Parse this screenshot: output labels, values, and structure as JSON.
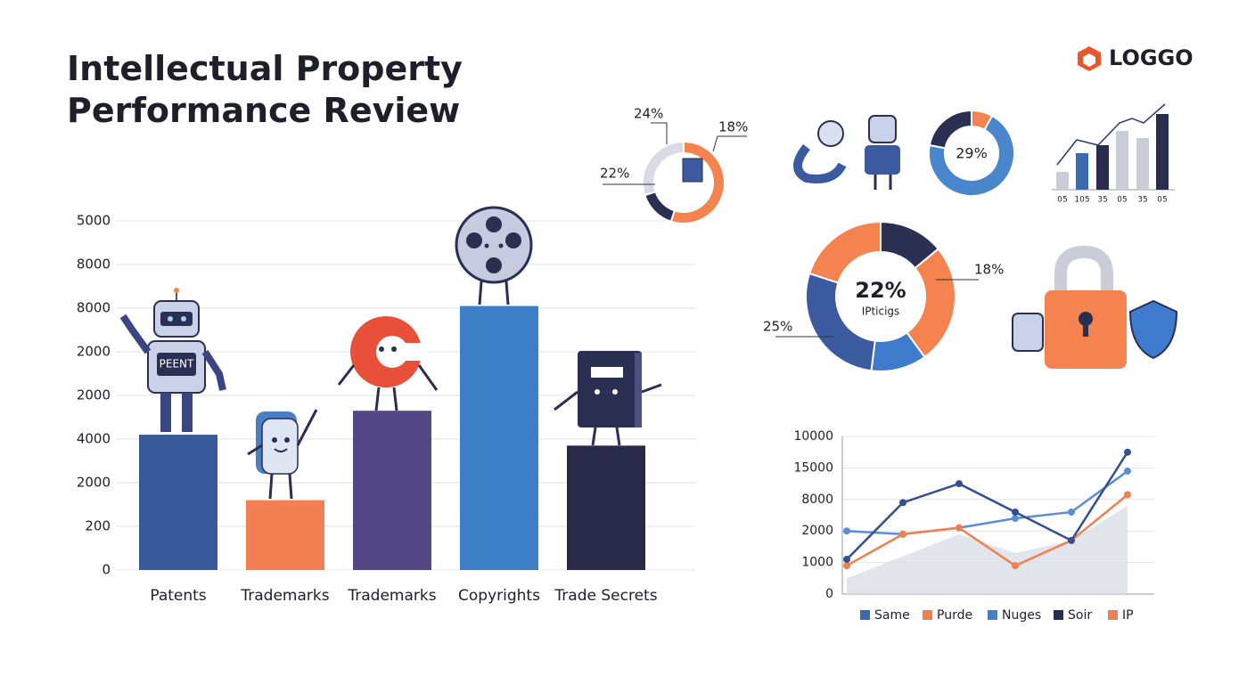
{
  "header": {
    "title_lines": [
      "Intellectual Property",
      "Performance Review"
    ],
    "logo": "LOGGO"
  },
  "chart_data": [
    {
      "type": "bar",
      "categories": [
        "Patents",
        "Trademarks",
        "Trademarks",
        "Copyrights",
        "Trade Secrets"
      ],
      "values": [
        3100,
        1600,
        3650,
        6050,
        2850
      ],
      "colors": [
        "#385a98",
        "#f47f52",
        "#554786",
        "#3d7fc6",
        "#292a48"
      ],
      "ylim": [
        0,
        8000
      ],
      "yticks": [
        0,
        {
          "value": 1000,
          "label": "200"
        },
        2000,
        {
          "value": 3000,
          "label": "4000"
        },
        {
          "value": 4000,
          "label": "2000"
        },
        {
          "value": 5000,
          "label": "2000"
        },
        {
          "value": 6000,
          "label": "8000"
        },
        {
          "value": 7000,
          "label": "8000"
        },
        {
          "value": 8000,
          "label": "5000"
        }
      ],
      "grid": true
    },
    {
      "type": "line",
      "categories": [
        null,
        null,
        null,
        null,
        null,
        null
      ],
      "area": {
        "color": "#dcdfe8",
        "values": [
          500,
          1200,
          1900,
          1300,
          1700,
          2800
        ]
      },
      "series": [
        {
          "color": "#5a8ed0",
          "values": [
            2000,
            1900,
            2100,
            2400,
            2600,
            3900
          ]
        },
        {
          "color": "#f0804f",
          "values": [
            900,
            1900,
            2100,
            900,
            1700,
            3150
          ]
        },
        {
          "color": "#34508e",
          "values": [
            1100,
            2900,
            3500,
            2600,
            1700,
            4500
          ]
        }
      ],
      "legend": [
        {
          "name": "Same",
          "color": "#3a6bb0"
        },
        {
          "name": "Purde",
          "color": "#f0804f"
        },
        {
          "name": "Nuges",
          "color": "#4a7fc4"
        },
        {
          "name": "Soir",
          "color": "#2a2d4e"
        },
        {
          "name": "IP",
          "color": "#f0804f"
        }
      ],
      "ylim": [
        0,
        5000
      ],
      "yticks": [
        0,
        1000,
        2000,
        {
          "value": 3000,
          "label": "8000"
        },
        {
          "value": 4000,
          "label": "15000"
        },
        {
          "value": 5000,
          "label": "10000"
        }
      ],
      "grid": true
    },
    {
      "type": "pie",
      "values": [
        14,
        26,
        12,
        28,
        20
      ],
      "colors": [
        "#2b2f52",
        "#f4834f",
        "#3f7bcc",
        "#3b5aa0",
        "#f4834f"
      ],
      "center_label": "22%",
      "center_sublabel": "IPticigs",
      "annotations": [
        "18%",
        "25%"
      ]
    },
    {
      "type": "pie",
      "values": [
        8,
        70,
        22
      ],
      "colors": [
        "#f4834f",
        "#4a86cc",
        "#2b2f52"
      ],
      "center_label": "29%"
    },
    {
      "type": "pie",
      "values": [
        55,
        15,
        30
      ],
      "colors": [
        "#f4834f",
        "#2b2f52",
        "#d8dbe3"
      ],
      "annotations": [
        "24%",
        "18%",
        "22%"
      ]
    },
    {
      "type": "bar",
      "categories": [
        "05",
        "105",
        "35",
        "05",
        "35",
        "05"
      ],
      "values": [
        20,
        41,
        50,
        66,
        58,
        85
      ],
      "colors": [
        "#c9cdd8",
        "#3a6bb0",
        "#2a2d4e",
        "#c9cdd8",
        "#c9cdd8",
        "#2a2d4e"
      ]
    }
  ]
}
